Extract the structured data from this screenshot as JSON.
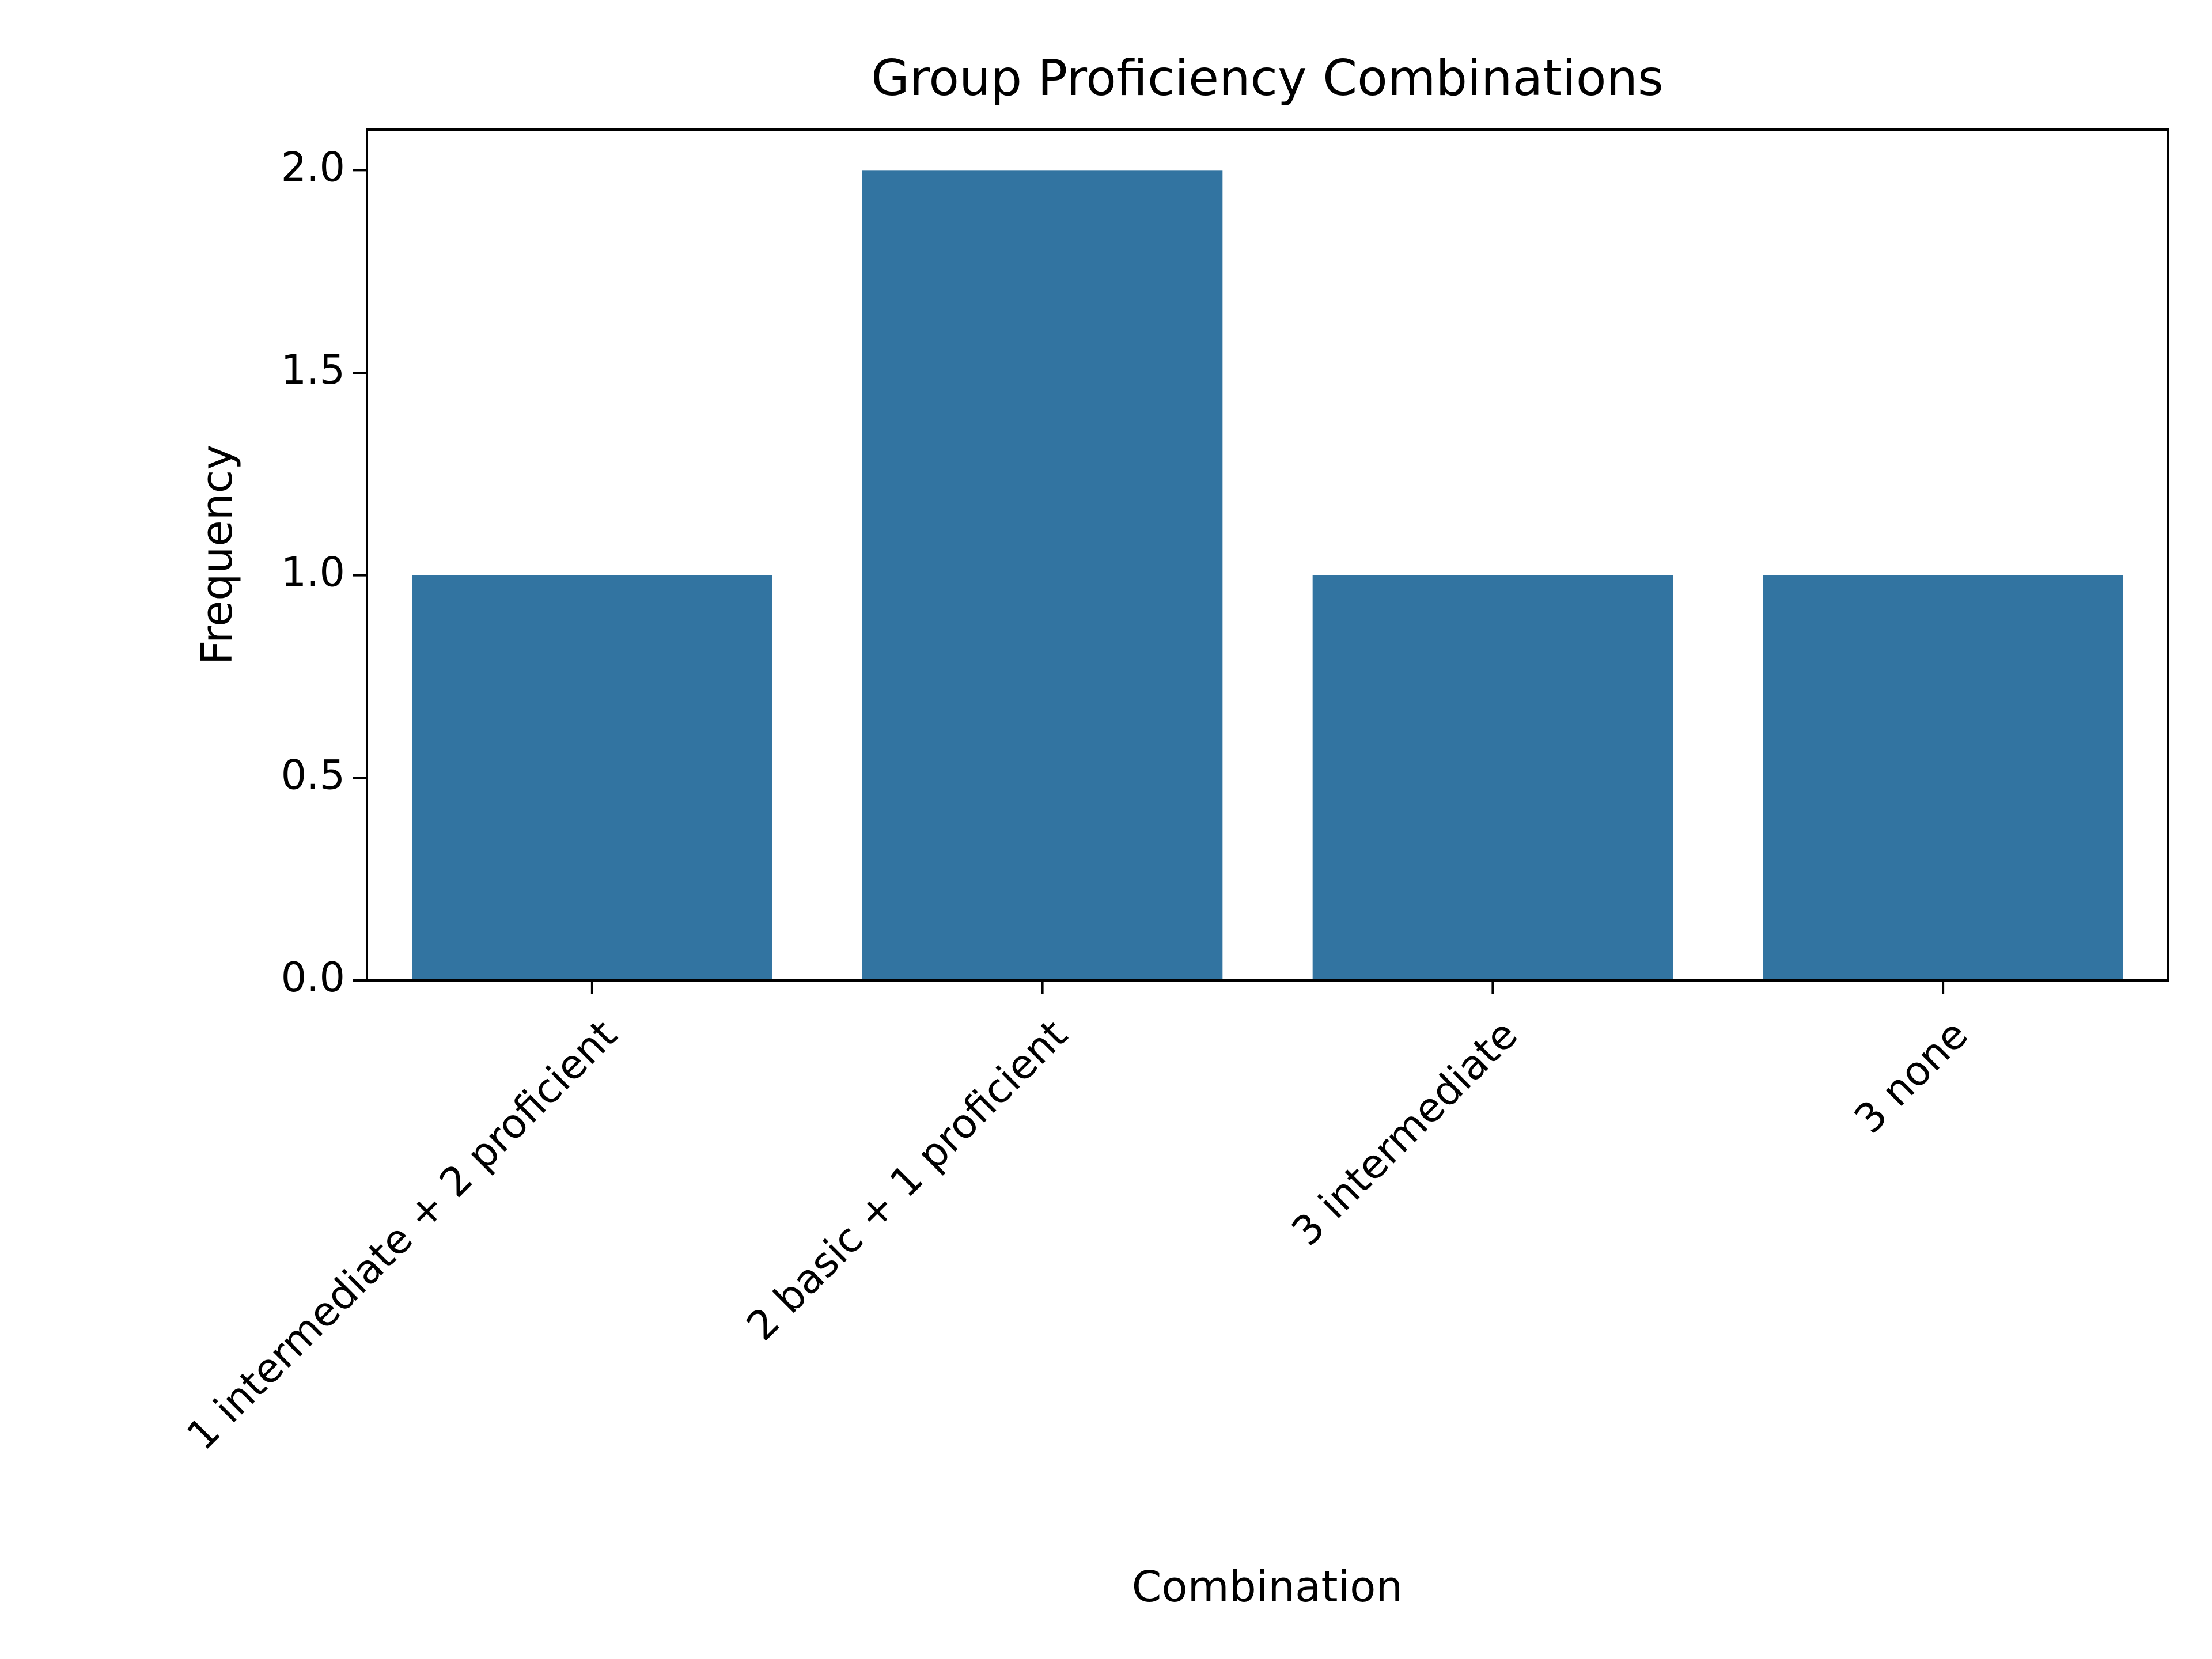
{
  "chart_data": {
    "type": "bar",
    "title": "Group Proficiency Combinations",
    "xlabel": "Combination",
    "ylabel": "Frequency",
    "categories": [
      "1 intermediate + 2 proficient",
      "2 basic + 1 proficient",
      "3 intermediate",
      "3 none"
    ],
    "values": [
      1,
      2,
      1,
      1
    ],
    "ylim": [
      0,
      2.1
    ],
    "yticks": [
      "0.0",
      "0.5",
      "1.0",
      "1.5",
      "2.0"
    ],
    "bar_color": "#3274a1",
    "grid": false,
    "legend": "none"
  }
}
